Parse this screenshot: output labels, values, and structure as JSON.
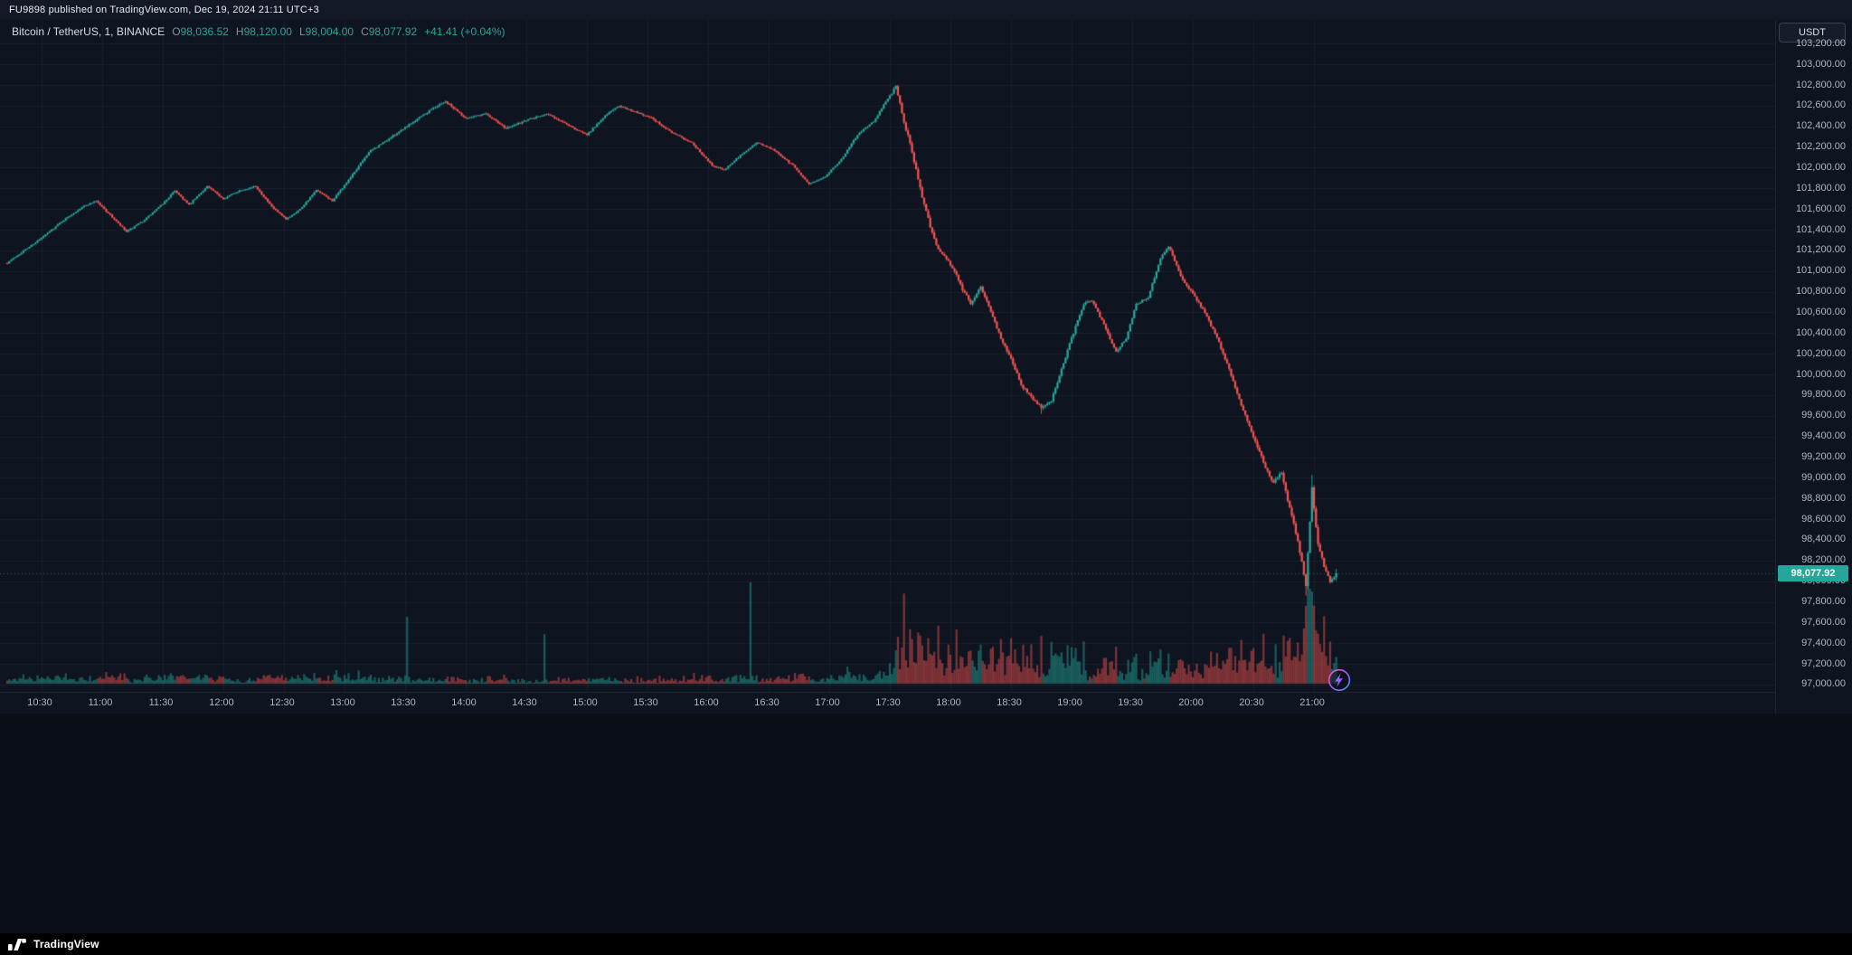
{
  "attribution": {
    "text": "FU9898 published on TradingView.com, Dec 19, 2024 21:11 UTC+3"
  },
  "header": {
    "symbol": "Bitcoin / TetherUS, 1, BINANCE",
    "ohlc": {
      "o_label": "O",
      "o": "98,036.52",
      "h_label": "H",
      "h": "98,120.00",
      "l_label": "L",
      "l": "98,004.00",
      "c_label": "C",
      "c": "98,077.92",
      "change": "+41.41 (+0.04%)"
    }
  },
  "price_scale": {
    "currency_button": "USDT",
    "last_price_label": "98,077.92"
  },
  "footer": {
    "logo_text": "TradingView"
  },
  "colors": {
    "background": "#0e1420",
    "attribution_bg": "#131827",
    "up": "#26a69a",
    "down": "#ef5350",
    "vol_up": "rgba(38,166,154,0.5)",
    "vol_down": "rgba(239,83,80,0.5)",
    "grid": "rgba(150,160,180,0.08)",
    "axis_text": "#aeb5c2",
    "badge_bg": "#26a69a",
    "boost_gradient": [
      "#ff53c9",
      "#9a5cff",
      "#3aa0ff"
    ]
  },
  "chart_data": {
    "type": "candlestick",
    "title": "Bitcoin / TetherUS, 1, BINANCE",
    "symbol": "Bitcoin / TetherUS",
    "exchange": "BINANCE",
    "interval": "1",
    "currency": "USDT",
    "current_bar": {
      "open": 98036.52,
      "high": 98120.0,
      "low": 98004.0,
      "close": 98077.92,
      "change": 41.41,
      "change_pct": 0.04
    },
    "last_price": 98077.92,
    "session": {
      "high": 102800,
      "low": 97860
    },
    "y_axis": {
      "min": 96930,
      "max": 103430,
      "tick_start": 97000,
      "tick_end": 103200,
      "tick_step": 200
    },
    "x_axis": {
      "start": "10:13",
      "end": "21:11",
      "tick_interval_min": 30,
      "ticks": [
        "10:30",
        "11:00",
        "11:30",
        "12:00",
        "12:30",
        "13:00",
        "13:30",
        "14:00",
        "14:30",
        "15:00",
        "15:30",
        "16:00",
        "16:30",
        "17:00",
        "17:30",
        "18:00",
        "18:30",
        "19:00",
        "19:30",
        "20:00",
        "20:30",
        "21:00"
      ]
    },
    "duration_min": 658,
    "seed": 7,
    "price_path": [
      [
        0,
        101080
      ],
      [
        7,
        101180
      ],
      [
        17,
        101320
      ],
      [
        27,
        101480
      ],
      [
        37,
        101620
      ],
      [
        44,
        101680
      ],
      [
        52,
        101520
      ],
      [
        59,
        101380
      ],
      [
        67,
        101480
      ],
      [
        77,
        101650
      ],
      [
        83,
        101780
      ],
      [
        90,
        101640
      ],
      [
        99,
        101820
      ],
      [
        107,
        101700
      ],
      [
        115,
        101780
      ],
      [
        123,
        101820
      ],
      [
        131,
        101620
      ],
      [
        138,
        101500
      ],
      [
        145,
        101600
      ],
      [
        153,
        101780
      ],
      [
        161,
        101680
      ],
      [
        169,
        101880
      ],
      [
        179,
        102150
      ],
      [
        189,
        102280
      ],
      [
        199,
        102420
      ],
      [
        209,
        102550
      ],
      [
        217,
        102640
      ],
      [
        227,
        102480
      ],
      [
        237,
        102520
      ],
      [
        247,
        102380
      ],
      [
        257,
        102460
      ],
      [
        267,
        102520
      ],
      [
        277,
        102420
      ],
      [
        287,
        102320
      ],
      [
        297,
        102520
      ],
      [
        303,
        102600
      ],
      [
        311,
        102540
      ],
      [
        319,
        102480
      ],
      [
        329,
        102340
      ],
      [
        339,
        102240
      ],
      [
        349,
        102020
      ],
      [
        355,
        101980
      ],
      [
        363,
        102120
      ],
      [
        371,
        102240
      ],
      [
        379,
        102180
      ],
      [
        389,
        102020
      ],
      [
        397,
        101840
      ],
      [
        405,
        101920
      ],
      [
        413,
        102080
      ],
      [
        421,
        102320
      ],
      [
        429,
        102450
      ],
      [
        437,
        102700
      ],
      [
        440,
        102780
      ],
      [
        444,
        102450
      ],
      [
        448,
        102150
      ],
      [
        452,
        101800
      ],
      [
        456,
        101500
      ],
      [
        460,
        101250
      ],
      [
        465,
        101120
      ],
      [
        469,
        101000
      ],
      [
        473,
        100820
      ],
      [
        477,
        100690
      ],
      [
        482,
        100850
      ],
      [
        487,
        100600
      ],
      [
        492,
        100350
      ],
      [
        497,
        100150
      ],
      [
        502,
        99900
      ],
      [
        507,
        99780
      ],
      [
        512,
        99680
      ],
      [
        517,
        99750
      ],
      [
        522,
        100050
      ],
      [
        527,
        100350
      ],
      [
        533,
        100680
      ],
      [
        537,
        100720
      ],
      [
        543,
        100480
      ],
      [
        549,
        100220
      ],
      [
        554,
        100350
      ],
      [
        559,
        100680
      ],
      [
        565,
        100750
      ],
      [
        571,
        101120
      ],
      [
        575,
        101240
      ],
      [
        581,
        100950
      ],
      [
        587,
        100780
      ],
      [
        593,
        100600
      ],
      [
        599,
        100350
      ],
      [
        605,
        100050
      ],
      [
        611,
        99700
      ],
      [
        617,
        99400
      ],
      [
        622,
        99150
      ],
      [
        627,
        98950
      ],
      [
        631,
        99050
      ],
      [
        635,
        98700
      ],
      [
        639,
        98400
      ],
      [
        643,
        97950
      ],
      [
        646,
        98900
      ],
      [
        649,
        98350
      ],
      [
        652,
        98150
      ],
      [
        655,
        97980
      ],
      [
        658,
        98078
      ]
    ],
    "volatility_regimes": [
      [
        0,
        12
      ],
      [
        170,
        15
      ],
      [
        300,
        13
      ],
      [
        437,
        24
      ],
      [
        444,
        32
      ],
      [
        460,
        26
      ],
      [
        482,
        24
      ],
      [
        530,
        19
      ],
      [
        560,
        22
      ],
      [
        597,
        26
      ],
      [
        617,
        30
      ],
      [
        637,
        36
      ],
      [
        650,
        26
      ]
    ],
    "volume_regimes": [
      [
        0,
        0
      ],
      [
        437,
        11
      ],
      [
        530,
        4
      ],
      [
        565,
        6
      ],
      [
        597,
        9
      ],
      [
        637,
        14
      ]
    ],
    "volume_spikes": [
      [
        198,
        72
      ],
      [
        266,
        60
      ],
      [
        368,
        112
      ],
      [
        440,
        40
      ],
      [
        444,
        95
      ],
      [
        447,
        70
      ],
      [
        452,
        55
      ],
      [
        456,
        48
      ],
      [
        461,
        58
      ],
      [
        466,
        42
      ],
      [
        470,
        60
      ],
      [
        476,
        40
      ],
      [
        482,
        46
      ],
      [
        488,
        38
      ],
      [
        492,
        50
      ],
      [
        497,
        52
      ],
      [
        503,
        40
      ],
      [
        507,
        44
      ],
      [
        512,
        60
      ],
      [
        517,
        46
      ],
      [
        522,
        38
      ],
      [
        533,
        42
      ],
      [
        543,
        30
      ],
      [
        549,
        36
      ],
      [
        559,
        30
      ],
      [
        571,
        40
      ],
      [
        575,
        32
      ],
      [
        581,
        28
      ],
      [
        599,
        34
      ],
      [
        605,
        40
      ],
      [
        611,
        48
      ],
      [
        617,
        44
      ],
      [
        622,
        52
      ],
      [
        628,
        40
      ],
      [
        635,
        56
      ],
      [
        639,
        48
      ],
      [
        643,
        98
      ],
      [
        646,
        92
      ],
      [
        649,
        54
      ],
      [
        652,
        68
      ],
      [
        655,
        42
      ],
      [
        658,
        30
      ]
    ],
    "forced": {
      "440": {
        "high": 102800
      },
      "512": {
        "low": 99620
      },
      "643": {
        "low": 97860
      },
      "646": {
        "high": 99030
      },
      "657": {
        "close": 98036.52
      },
      "658": {
        "open": 98036.52,
        "high": 98120,
        "low": 98004,
        "close": 98077.92
      }
    }
  }
}
